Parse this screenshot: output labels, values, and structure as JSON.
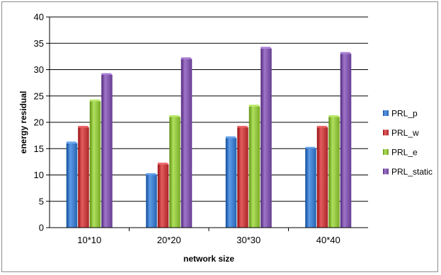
{
  "chart_data": {
    "type": "bar",
    "title": "",
    "xlabel": "network size",
    "ylabel": "energy residual",
    "categories": [
      "10*10",
      "20*20",
      "30*30",
      "40*40"
    ],
    "series": [
      {
        "name": "PRL_p",
        "values": [
          16,
          10,
          17,
          15
        ],
        "color": "#3a77c4"
      },
      {
        "name": "PRL_w",
        "values": [
          19,
          12,
          19,
          19
        ],
        "color": "#c0393b"
      },
      {
        "name": "PRL_e",
        "values": [
          24,
          21,
          23,
          21
        ],
        "color": "#8cbd3b"
      },
      {
        "name": "PRL_static",
        "values": [
          29,
          32,
          34,
          33
        ],
        "color": "#7b52a6"
      }
    ],
    "ylim": [
      0,
      40
    ],
    "yticks": [
      0,
      5,
      10,
      15,
      20,
      25,
      30,
      35,
      40
    ],
    "grid": true,
    "legend_position": "right"
  }
}
